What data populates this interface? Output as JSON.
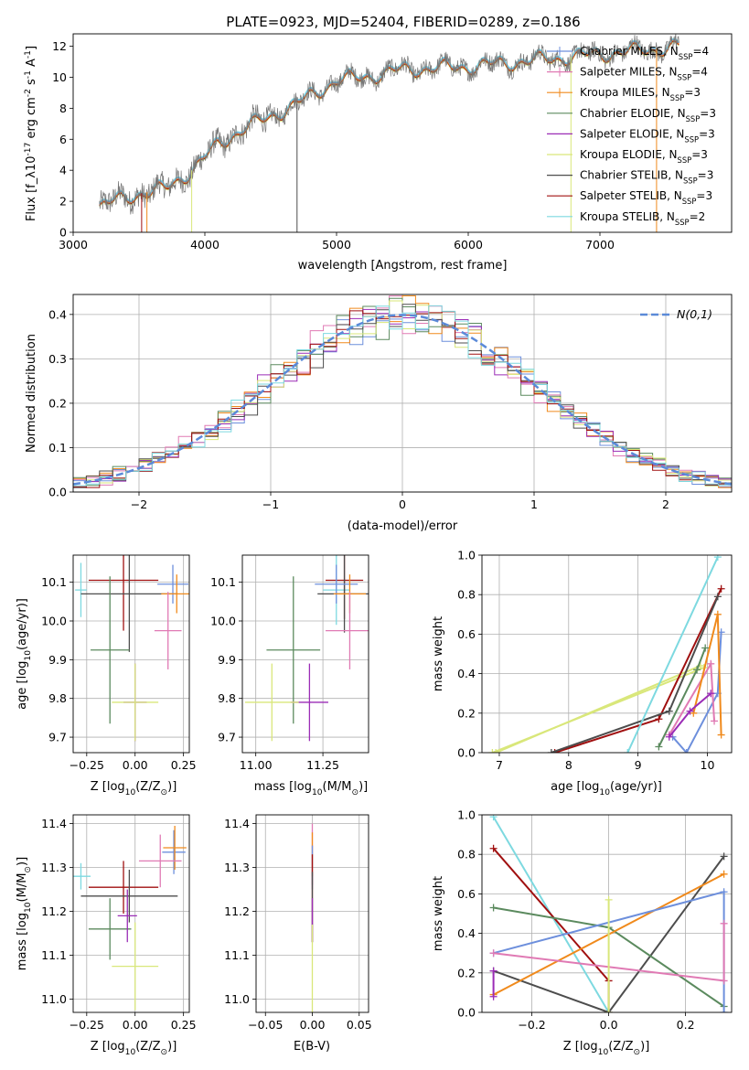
{
  "figure_title": "PLATE=0923, MJD=52404, FIBERID=0289, z=0.186",
  "colors": {
    "chabrier_miles": "#6d8fdc",
    "salpeter_miles": "#e07ab4",
    "kroupa_miles": "#f08a1c",
    "chabrier_elodie": "#5b8a5e",
    "salpeter_elodie": "#9b2cb6",
    "kroupa_elodie": "#d9e77a",
    "chabrier_stelib": "#4d4d4d",
    "salpeter_stelib": "#a01010",
    "kroupa_stelib": "#7dd9e0",
    "gaussian": "#5b8ad8",
    "grid": "#b0b0b0"
  },
  "chart_data": [
    {
      "type": "line",
      "id": "spectrum",
      "xlabel": "wavelength [Angstrom, rest frame]",
      "ylabel": "Flux [f_λ10^-17 erg cm^-2 s^-1 A^-1]",
      "xlim": [
        3000,
        8000
      ],
      "ylim": [
        0,
        12.8
      ],
      "xticks": [
        3000,
        4000,
        5000,
        6000,
        7000
      ],
      "yticks": [
        0,
        2,
        4,
        6,
        8,
        10,
        12
      ],
      "legend_position": "upper right",
      "legend": [
        "Chabrier MILES, N_SSP=4",
        "Salpeter MILES, N_SSP=4",
        "Kroupa MILES, N_SSP=3",
        "Chabrier ELODIE, N_SSP=3",
        "Salpeter ELODIE, N_SSP=3",
        "Kroupa ELODIE, N_SSP=3",
        "Chabrier STELIB, N_SSP=3",
        "Salpeter STELIB, N_SSP=3",
        "Kroupa STELIB, N_SSP=2"
      ],
      "continuum": {
        "x": [
          3200,
          3500,
          3700,
          3900,
          4000,
          4100,
          4300,
          4500,
          4700,
          5000,
          5200,
          5500,
          6000,
          6500,
          7000,
          7500,
          7600
        ],
        "y": [
          1.7,
          2.5,
          2.8,
          4.0,
          4.8,
          5.7,
          6.7,
          7.5,
          8.3,
          9.8,
          10.0,
          10.5,
          10.7,
          11.1,
          11.5,
          11.9,
          12.0
        ]
      }
    },
    {
      "type": "area",
      "id": "residual_hist",
      "xlabel": "(data-model)/error",
      "ylabel": "Normed distribution",
      "xlim": [
        -2.5,
        2.5
      ],
      "ylim": [
        0,
        0.445
      ],
      "xticks": [
        -2,
        -1,
        0,
        1,
        2
      ],
      "yticks": [
        0.0,
        0.1,
        0.2,
        0.3,
        0.4
      ],
      "gaussian_label": "N(0,1)",
      "gaussian": {
        "mean": 0,
        "sigma": 1
      },
      "bin_width": 0.1
    },
    {
      "type": "scatter",
      "id": "age_vs_Z",
      "xlabel": "Z [log10(Z/Z⊙)]",
      "ylabel": "age [log10(age/yr)]",
      "xlim": [
        -0.32,
        0.28
      ],
      "ylim": [
        9.66,
        10.17
      ],
      "xticks": [
        -0.25,
        0.0,
        0.25
      ],
      "yticks": [
        9.7,
        9.8,
        9.9,
        10.0,
        10.1
      ],
      "points": [
        {
          "c": "kroupa_stelib",
          "x": -0.28,
          "xe": 0.03,
          "y": 10.08,
          "ye": 0.07
        },
        {
          "c": "salpeter_stelib",
          "x": -0.06,
          "xe": 0.18,
          "y": 10.105,
          "ye": 0.13
        },
        {
          "c": "chabrier_stelib",
          "x": -0.03,
          "xe": 0.25,
          "y": 10.07,
          "ye": 0.15
        },
        {
          "c": "chabrier_miles",
          "x": 0.195,
          "xe": 0.08,
          "y": 10.095,
          "ye": 0.05
        },
        {
          "c": "kroupa_miles",
          "x": 0.215,
          "xe": 0.08,
          "y": 10.07,
          "ye": 0.05
        },
        {
          "c": "salpeter_miles",
          "x": 0.17,
          "xe": 0.07,
          "y": 9.975,
          "ye": 0.1
        },
        {
          "c": "chabrier_elodie",
          "x": -0.13,
          "xe": 0.1,
          "y": 9.925,
          "ye": 0.19
        },
        {
          "c": "salpeter_elodie",
          "x": 0.0,
          "xe": 0.06,
          "y": 9.79,
          "ye": 0.1
        },
        {
          "c": "kroupa_elodie",
          "x": 0.0,
          "xe": 0.12,
          "y": 9.79,
          "ye": 0.1
        }
      ]
    },
    {
      "type": "scatter",
      "id": "age_vs_mass",
      "xlabel": "mass [log10(M/M⊙)]",
      "ylabel": "",
      "xlim": [
        10.95,
        11.42
      ],
      "ylim": [
        9.66,
        10.17
      ],
      "xticks": [
        11.0,
        11.25
      ],
      "xtick_labels": [
        "11.00",
        "11.25"
      ],
      "yticks": [
        9.7,
        9.8,
        9.9,
        10.0,
        10.1
      ],
      "points": [
        {
          "c": "kroupa_stelib",
          "x": 11.3,
          "xe": 0.05,
          "y": 10.08,
          "ye": 0.09
        },
        {
          "c": "salpeter_stelib",
          "x": 11.33,
          "xe": 0.07,
          "y": 10.105,
          "ye": 0.1
        },
        {
          "c": "chabrier_stelib",
          "x": 11.33,
          "xe": 0.1,
          "y": 10.07,
          "ye": 0.1
        },
        {
          "c": "chabrier_miles",
          "x": 11.3,
          "xe": 0.08,
          "y": 10.095,
          "ye": 0.05
        },
        {
          "c": "kroupa_miles",
          "x": 11.35,
          "xe": 0.06,
          "y": 10.07,
          "ye": 0.05
        },
        {
          "c": "salpeter_miles",
          "x": 11.35,
          "xe": 0.09,
          "y": 9.975,
          "ye": 0.1
        },
        {
          "c": "chabrier_elodie",
          "x": 11.14,
          "xe": 0.1,
          "y": 9.925,
          "ye": 0.19
        },
        {
          "c": "salpeter_elodie",
          "x": 11.2,
          "xe": 0.07,
          "y": 9.79,
          "ye": 0.1
        },
        {
          "c": "kroupa_elodie",
          "x": 11.06,
          "xe": 0.1,
          "y": 9.79,
          "ye": 0.1
        }
      ]
    },
    {
      "type": "line",
      "id": "mass_weight_vs_age",
      "xlabel": "age [log10(age/yr)]",
      "ylabel": "mass weight",
      "xlim": [
        6.75,
        10.35
      ],
      "ylim": [
        0,
        1.0
      ],
      "xticks": [
        7,
        8,
        9,
        10
      ],
      "yticks": [
        0.0,
        0.2,
        0.4,
        0.6,
        0.8,
        1.0
      ],
      "series": [
        {
          "c": "kroupa_elodie",
          "x": [
            6.9,
            9.95
          ],
          "y": [
            0.0,
            0.43
          ]
        },
        {
          "c": "kroupa_elodie",
          "x": [
            6.95,
            9.9
          ],
          "y": [
            0.0,
            0.44
          ]
        },
        {
          "c": "salpeter_stelib",
          "x": [
            7.8,
            9.3,
            10.2
          ],
          "y": [
            0.0,
            0.17,
            0.83
          ]
        },
        {
          "c": "chabrier_stelib",
          "x": [
            7.75,
            9.45,
            10.15
          ],
          "y": [
            0.0,
            0.21,
            0.79
          ]
        },
        {
          "c": "kroupa_stelib",
          "x": [
            8.85,
            10.15
          ],
          "y": [
            0.0,
            0.99
          ]
        },
        {
          "c": "chabrier_miles",
          "x": [
            9.5,
            9.7,
            10.15,
            10.2
          ],
          "y": [
            0.08,
            0.0,
            0.3,
            0.61
          ]
        },
        {
          "c": "salpeter_miles",
          "x": [
            9.45,
            10.05,
            10.1
          ],
          "y": [
            0.09,
            0.45,
            0.16
          ]
        },
        {
          "c": "kroupa_miles",
          "x": [
            9.8,
            10.15,
            10.2
          ],
          "y": [
            0.2,
            0.7,
            0.09
          ]
        },
        {
          "c": "chabrier_elodie",
          "x": [
            9.3,
            9.85,
            9.97
          ],
          "y": [
            0.03,
            0.42,
            0.53
          ]
        },
        {
          "c": "salpeter_elodie",
          "x": [
            9.45,
            9.75,
            10.05
          ],
          "y": [
            0.08,
            0.21,
            0.3
          ]
        }
      ]
    },
    {
      "type": "scatter",
      "id": "mass_vs_Z",
      "xlabel": "Z [log10(Z/Z⊙)]",
      "ylabel": "mass [log10(M/M⊙)]",
      "xlim": [
        -0.32,
        0.28
      ],
      "ylim": [
        10.97,
        11.42
      ],
      "xticks": [
        -0.25,
        0.0,
        0.25
      ],
      "yticks": [
        11.0,
        11.1,
        11.2,
        11.3,
        11.4
      ],
      "points": [
        {
          "c": "kroupa_stelib",
          "x": -0.28,
          "xe": 0.05,
          "y": 11.28,
          "ye": 0.03
        },
        {
          "c": "salpeter_stelib",
          "x": -0.06,
          "xe": 0.18,
          "y": 11.255,
          "ye": 0.06
        },
        {
          "c": "chabrier_stelib",
          "x": -0.03,
          "xe": 0.25,
          "y": 11.235,
          "ye": 0.06
        },
        {
          "c": "chabrier_miles",
          "x": 0.2,
          "xe": 0.06,
          "y": 11.335,
          "ye": 0.05
        },
        {
          "c": "kroupa_miles",
          "x": 0.205,
          "xe": 0.06,
          "y": 11.345,
          "ye": 0.05
        },
        {
          "c": "salpeter_miles",
          "x": 0.13,
          "xe": 0.11,
          "y": 11.315,
          "ye": 0.06
        },
        {
          "c": "chabrier_elodie",
          "x": -0.13,
          "xe": 0.11,
          "y": 11.16,
          "ye": 0.07
        },
        {
          "c": "salpeter_elodie",
          "x": -0.04,
          "xe": 0.05,
          "y": 11.19,
          "ye": 0.06
        },
        {
          "c": "kroupa_elodie",
          "x": 0.0,
          "xe": 0.12,
          "y": 11.075,
          "ye": 0.1
        }
      ]
    },
    {
      "type": "scatter",
      "id": "mass_vs_EBV",
      "xlabel": "E(B-V)",
      "ylabel": "",
      "xlim": [
        -0.06,
        0.06
      ],
      "ylim": [
        10.97,
        11.42
      ],
      "xticks": [
        -0.05,
        0.0,
        0.05
      ],
      "xtick_labels": [
        "−0.05",
        "0.00",
        "0.05"
      ],
      "yticks": [
        11.0,
        11.1,
        11.2,
        11.3,
        11.4
      ],
      "points": [
        {
          "c": "salpeter_miles",
          "x": 0.0,
          "xe": 0.0,
          "y": 11.33,
          "ye": 0.07
        },
        {
          "c": "kroupa_miles",
          "x": 0.0,
          "xe": 0.0,
          "y": 11.33,
          "ye": 0.05
        },
        {
          "c": "chabrier_miles",
          "x": 0.0,
          "xe": 0.0,
          "y": 11.3,
          "ye": 0.05
        },
        {
          "c": "salpeter_stelib",
          "x": 0.0,
          "xe": 0.0,
          "y": 11.23,
          "ye": 0.1
        },
        {
          "c": "chabrier_stelib",
          "x": 0.0,
          "xe": 0.0,
          "y": 11.21,
          "ye": 0.08
        },
        {
          "c": "salpeter_elodie",
          "x": 0.0,
          "xe": 0.0,
          "y": 11.18,
          "ye": 0.05
        },
        {
          "c": "kroupa_elodie",
          "x": 0.0,
          "xe": 0.0,
          "y": 11.07,
          "ye": 0.1
        }
      ]
    },
    {
      "type": "line",
      "id": "mass_weight_vs_Z",
      "xlabel": "Z [log10(Z/Z⊙)]",
      "ylabel": "mass weight",
      "xlim": [
        -0.33,
        0.32
      ],
      "ylim": [
        0,
        1.0
      ],
      "xticks": [
        -0.2,
        0.0,
        0.2
      ],
      "xtick_labels": [
        "−0.2",
        "0.0",
        "0.2"
      ],
      "yticks": [
        0.0,
        0.2,
        0.4,
        0.6,
        0.8,
        1.0
      ],
      "series": [
        {
          "c": "kroupa_stelib",
          "x": [
            -0.3,
            0.0
          ],
          "y": [
            0.99,
            0.0
          ]
        },
        {
          "c": "salpeter_stelib",
          "x": [
            -0.3,
            0.0,
            0.0
          ],
          "y": [
            0.83,
            0.16,
            0.0
          ]
        },
        {
          "c": "chabrier_stelib",
          "x": [
            -0.3,
            0.0,
            0.3
          ],
          "y": [
            0.21,
            0.0,
            0.79
          ]
        },
        {
          "c": "chabrier_elodie",
          "x": [
            -0.3,
            0.0,
            0.3
          ],
          "y": [
            0.53,
            0.43,
            0.03
          ]
        },
        {
          "c": "kroupa_miles",
          "x": [
            -0.3,
            0.3
          ],
          "y": [
            0.09,
            0.7
          ]
        },
        {
          "c": "chabrier_miles",
          "x": [
            -0.3,
            0.3,
            0.3
          ],
          "y": [
            0.3,
            0.61,
            0.0
          ]
        },
        {
          "c": "salpeter_miles",
          "x": [
            -0.3,
            0.3,
            0.3
          ],
          "y": [
            0.3,
            0.16,
            0.45
          ]
        },
        {
          "c": "salpeter_elodie",
          "x": [
            -0.3,
            -0.3
          ],
          "y": [
            0.08,
            0.21
          ]
        },
        {
          "c": "kroupa_elodie",
          "x": [
            0.0,
            0.0
          ],
          "y": [
            0.0,
            0.57
          ]
        }
      ]
    }
  ]
}
